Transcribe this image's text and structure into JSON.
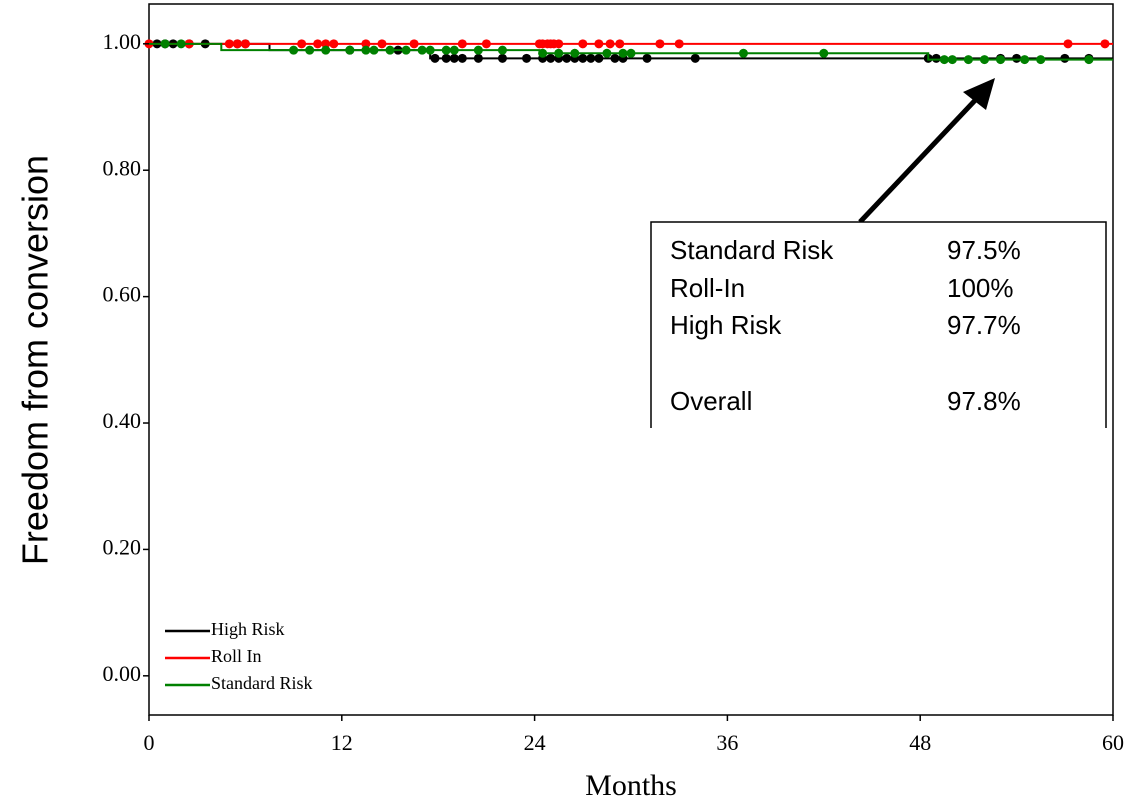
{
  "chart_data": {
    "type": "km",
    "xlabel": "Months",
    "ylabel": "Freedom from conversion",
    "xlim": [
      0,
      60
    ],
    "ylim": [
      -0.062,
      1.063
    ],
    "xticks": [
      0,
      12,
      24,
      36,
      48,
      60
    ],
    "yticks": [
      {
        "value": 0,
        "label": "0.00"
      },
      {
        "value": 0.2,
        "label": "0.20"
      },
      {
        "value": 0.4,
        "label": "0.40"
      },
      {
        "value": 0.6,
        "label": "0.60"
      },
      {
        "value": 0.8,
        "label": "0.80"
      },
      {
        "value": 1,
        "label": "1.00"
      }
    ],
    "legend": "lower left",
    "series": [
      {
        "name": "High Risk",
        "color": "#000000",
        "x": [
          0,
          7.5,
          7.5,
          17.5,
          17.5,
          60
        ],
        "values": [
          1,
          1,
          0.99,
          0.99,
          0.977,
          0.977
        ],
        "censor_x": [
          0.5,
          1,
          1.5,
          2.5,
          3.5,
          5.5,
          6,
          12.5,
          15.5,
          17.8,
          18.5,
          19,
          19.5,
          20.5,
          22,
          23.5,
          24.5,
          25,
          25.5,
          26,
          26.5,
          27,
          27.5,
          28,
          29,
          29.5,
          31,
          34,
          48.5,
          49,
          53,
          54,
          57,
          58.5
        ],
        "censor_values": [
          1,
          1,
          1,
          1,
          1,
          1,
          1,
          0.99,
          0.99,
          0.977,
          0.977,
          0.977,
          0.977,
          0.977,
          0.977,
          0.977,
          0.977,
          0.977,
          0.977,
          0.977,
          0.977,
          0.977,
          0.977,
          0.977,
          0.977,
          0.977,
          0.977,
          0.977,
          0.977,
          0.977,
          0.977,
          0.977,
          0.977,
          0.977
        ]
      },
      {
        "name": "Roll In",
        "color": "#ff0000",
        "x": [
          0,
          60
        ],
        "values": [
          1,
          1
        ],
        "censor_x": [
          0,
          2.5,
          5,
          5.5,
          6,
          9.5,
          10.5,
          11,
          11.5,
          13.5,
          14.5,
          16.5,
          19.5,
          21,
          24.3,
          24.5,
          24.8,
          25,
          25.2,
          25.5,
          27,
          28,
          28.7,
          29.3,
          31.8,
          33,
          57.2,
          59.5
        ],
        "censor_values": [
          1,
          1,
          1,
          1,
          1,
          1,
          1,
          1,
          1,
          1,
          1,
          1,
          1,
          1,
          1,
          1,
          1,
          1,
          1,
          1,
          1,
          1,
          1,
          1,
          1,
          1,
          1,
          1
        ]
      },
      {
        "name": "Standard Risk",
        "color": "#008000",
        "x": [
          0,
          4.5,
          4.5,
          24.3,
          24.3,
          48.5,
          48.5,
          60
        ],
        "values": [
          1,
          1,
          0.99,
          0.99,
          0.985,
          0.985,
          0.975,
          0.975
        ],
        "censor_x": [
          1,
          2,
          9,
          10,
          11,
          12.5,
          13.5,
          14,
          15,
          16,
          17,
          17.5,
          18.5,
          19,
          20.5,
          22,
          24.5,
          25.5,
          26.5,
          28.5,
          29.5,
          30,
          37,
          42,
          49.5,
          50,
          51,
          52,
          53,
          54.5,
          55.5,
          58.5
        ],
        "censor_values": [
          1,
          1,
          0.99,
          0.99,
          0.99,
          0.99,
          0.99,
          0.99,
          0.99,
          0.99,
          0.99,
          0.99,
          0.99,
          0.99,
          0.99,
          0.99,
          0.985,
          0.985,
          0.985,
          0.985,
          0.985,
          0.985,
          0.985,
          0.985,
          0.975,
          0.975,
          0.975,
          0.975,
          0.975,
          0.975,
          0.975,
          0.975
        ]
      }
    ],
    "annotation": {
      "rows": [
        [
          "Standard Risk",
          "97.5%"
        ],
        [
          "Roll-In",
          "100%"
        ],
        [
          "High Risk",
          "97.7%"
        ],
        [
          "Overall",
          "97.8%"
        ]
      ]
    }
  }
}
